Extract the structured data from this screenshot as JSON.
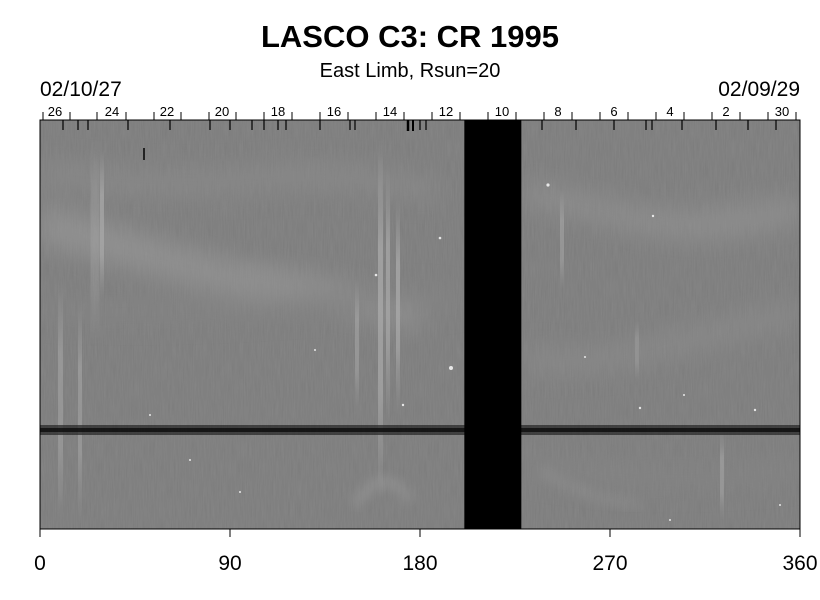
{
  "title": "LASCO C3: CR 1995",
  "subtitle": "East Limb, Rsun=20",
  "date_start": "02/10/27",
  "date_end": "02/09/29",
  "colors": {
    "background": "#7b7b7b",
    "gap": "#000000",
    "band": "#1e1e1e"
  },
  "top_axis": {
    "labels": [
      "26",
      "24",
      "22",
      "20",
      "18",
      "16",
      "14",
      "12",
      "10",
      "8",
      "6",
      "4",
      "2",
      "30"
    ]
  },
  "bottom_axis": {
    "range": [
      0,
      360
    ],
    "labels": [
      "0",
      "90",
      "180",
      "270",
      "360"
    ]
  },
  "data_gap_longitude": [
    201,
    228
  ]
}
